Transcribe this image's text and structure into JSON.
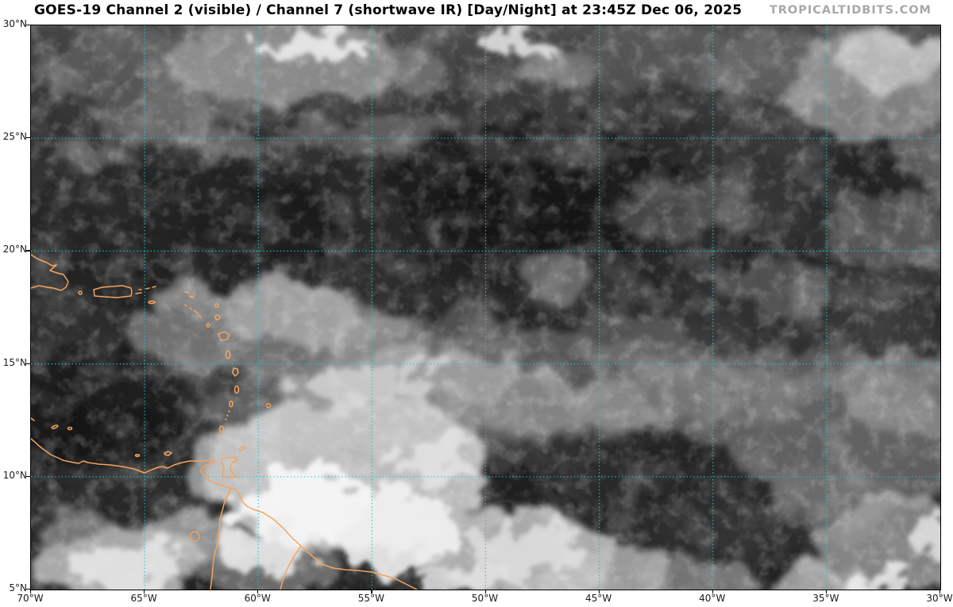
{
  "header": {
    "title": "GOES-19 Channel 2 (visible) / Channel 7 (shortwave IR) [Day/Night] at 23:45Z Dec 06, 2025",
    "watermark": "TROPICALTIDBITS.COM"
  },
  "satellite": {
    "satellite_name": "GOES-19",
    "channel_visible": "Channel 2 (visible)",
    "channel_ir": "Channel 7 (shortwave IR)",
    "mode": "[Day/Night]",
    "valid_time": "23:45Z Dec 06, 2025"
  },
  "axes": {
    "lat_labels": [
      "30°N",
      "25°N",
      "20°N",
      "15°N",
      "10°N",
      "5°N"
    ],
    "lon_labels": [
      "70°W",
      "65°W",
      "60°W",
      "55°W",
      "50°W",
      "45°W",
      "40°W",
      "35°W",
      "30°W"
    ]
  },
  "colors": {
    "gridline": "#17c9c9",
    "coastline": "#f4a45f",
    "title": "#000000",
    "watermark": "#a8a8a8",
    "tick_label": "#1a1a1a",
    "ocean_base": "#232323"
  }
}
